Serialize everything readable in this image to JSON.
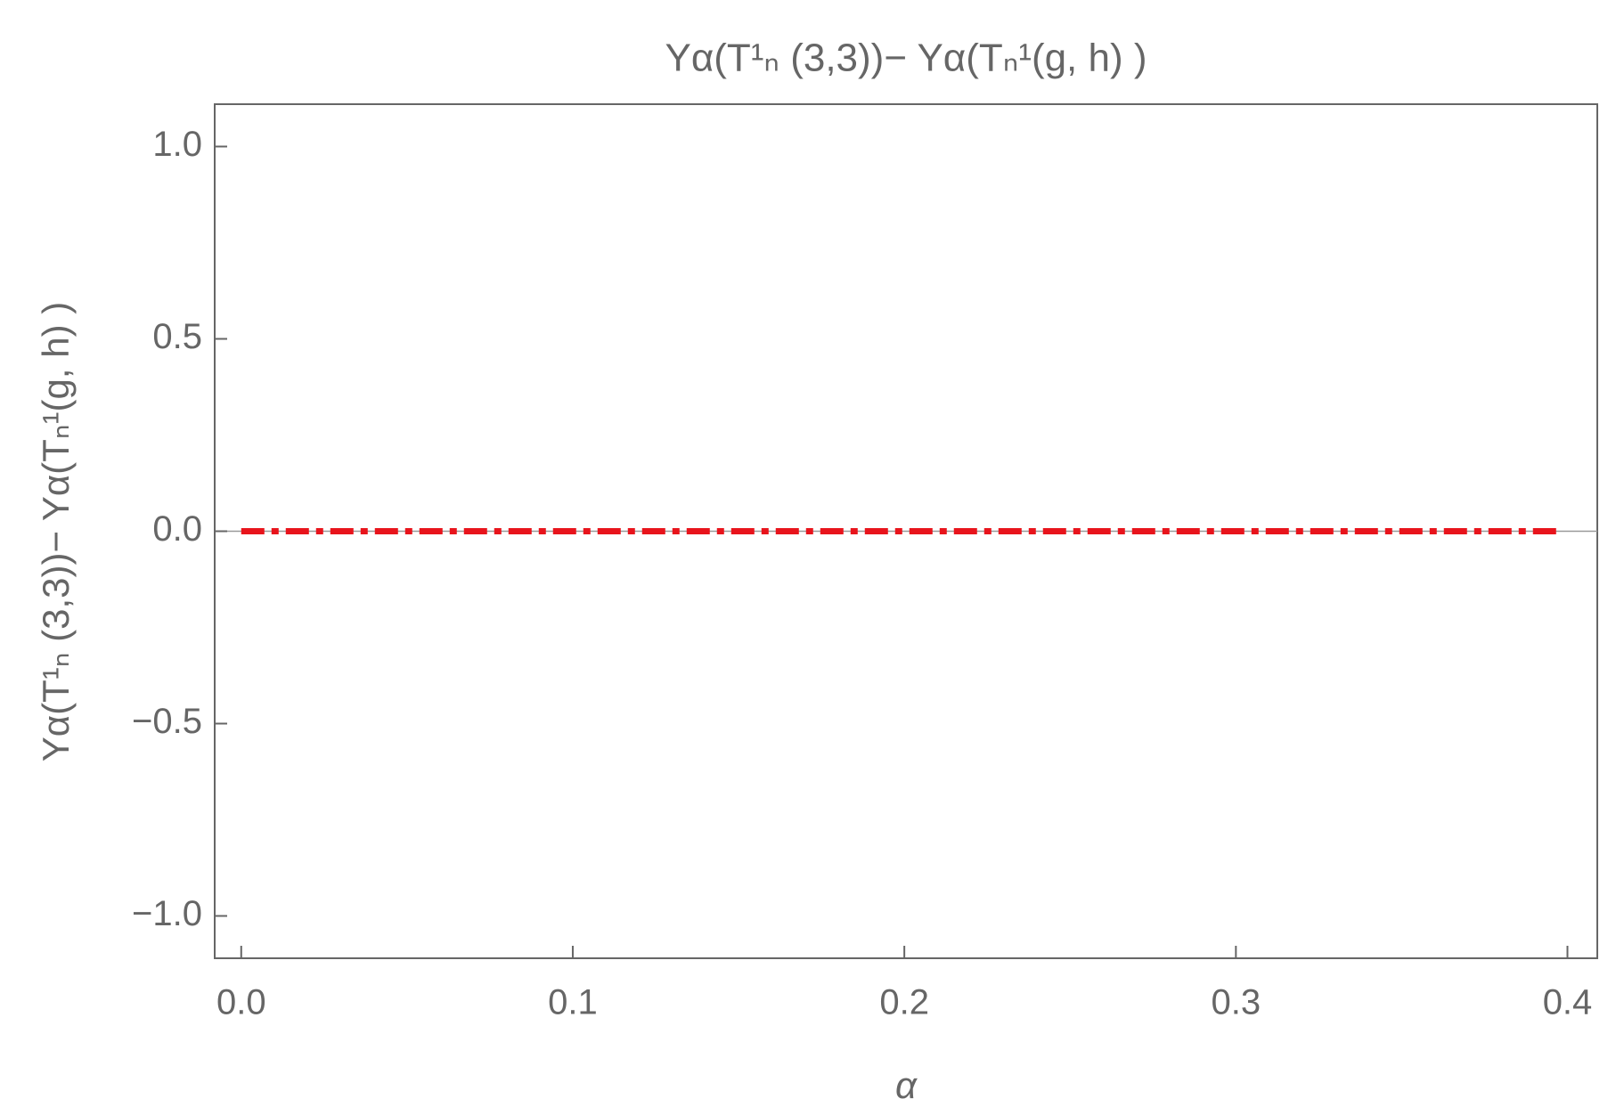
{
  "chart_data": {
    "type": "line",
    "title": "Yα(T¹ₙ (3,3))− Yα(Tₙ¹(g, h) )",
    "x_label": "α",
    "y_label": "Yα(T¹ₙ (3,3))− Yα(Tₙ¹(g, h) )",
    "x": [
      0,
      0.397
    ],
    "series": [
      {
        "color": "#e8141c",
        "values": [
          0,
          0
        ]
      }
    ],
    "xlim": [
      -0.008,
      0.409
    ],
    "ylim": [
      -1.11,
      1.11
    ],
    "xticks": [
      {
        "value": 0,
        "label": "0.0"
      },
      0.1,
      0.2,
      0.3,
      0.4
    ],
    "yticks": [
      {
        "value": -1,
        "label": "−1.0"
      },
      {
        "value": -0.5,
        "label": "−0.5"
      },
      {
        "value": 0,
        "label": "0.0"
      },
      0.5,
      {
        "value": 1,
        "label": "1.0"
      }
    ]
  }
}
